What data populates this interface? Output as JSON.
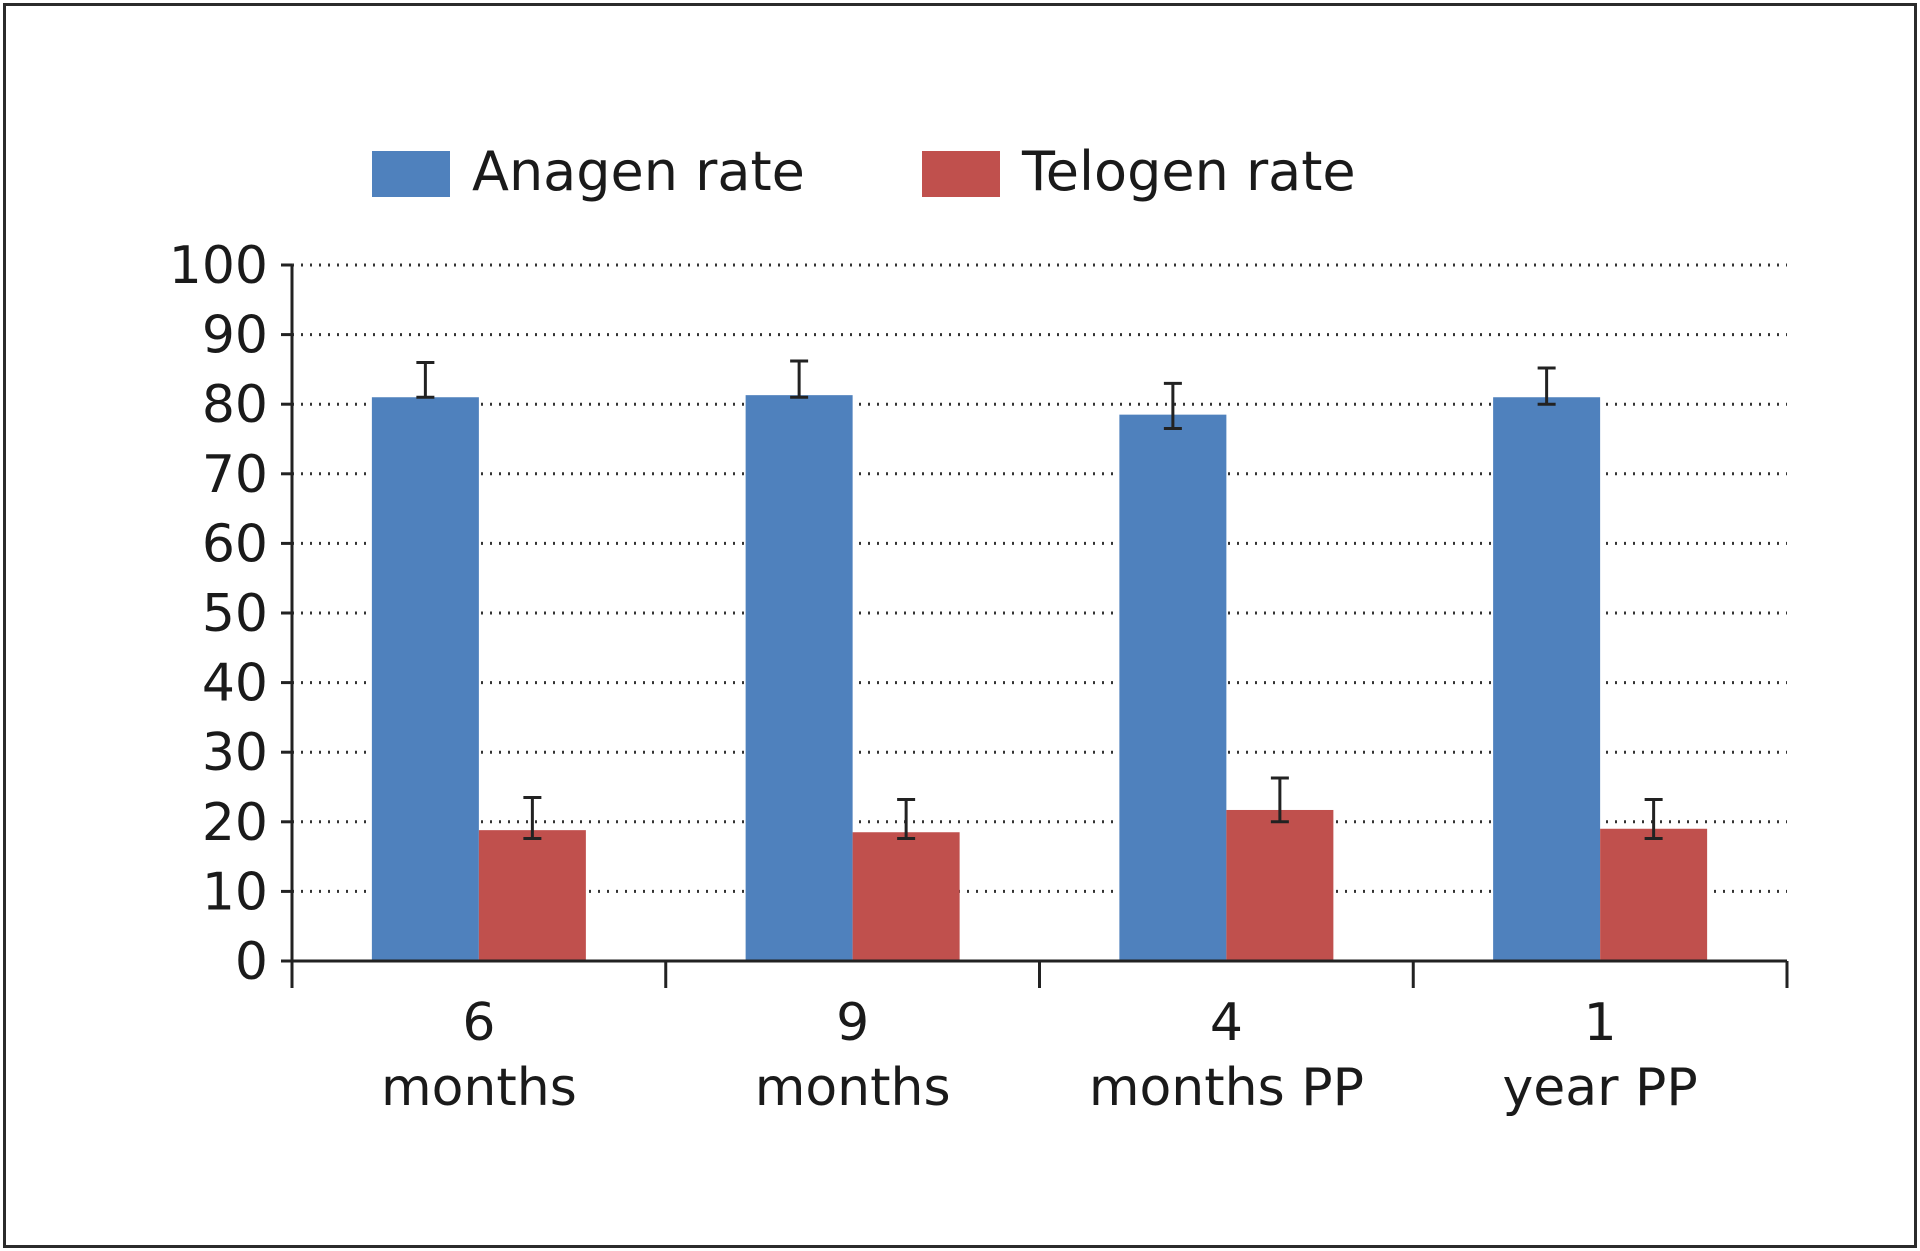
{
  "chart_data": {
    "type": "bar",
    "title": "",
    "xlabel": "",
    "ylabel": "",
    "ylim": [
      0,
      100
    ],
    "yticks": [
      0,
      10,
      20,
      30,
      40,
      50,
      60,
      70,
      80,
      90,
      100
    ],
    "grid": "horizontal-dotted",
    "legend_position": "top",
    "categories": [
      [
        "6",
        "months"
      ],
      [
        "9",
        "months"
      ],
      [
        "4",
        "months PP"
      ],
      [
        "1",
        "year PP"
      ]
    ],
    "series": [
      {
        "name": "Anagen rate",
        "color": "#4f81bd",
        "values": [
          81,
          81.3,
          78.5,
          81
        ],
        "error": [
          [
            81,
            86
          ],
          [
            81,
            86.2
          ],
          [
            76.5,
            83
          ],
          [
            80,
            85.2
          ]
        ]
      },
      {
        "name": "Telogen rate",
        "color": "#c0504d",
        "values": [
          18.8,
          18.5,
          21.7,
          19
        ],
        "error": [
          [
            17.6,
            23.5
          ],
          [
            17.6,
            23.2
          ],
          [
            20,
            26.3
          ],
          [
            17.6,
            23.2
          ]
        ]
      }
    ]
  }
}
